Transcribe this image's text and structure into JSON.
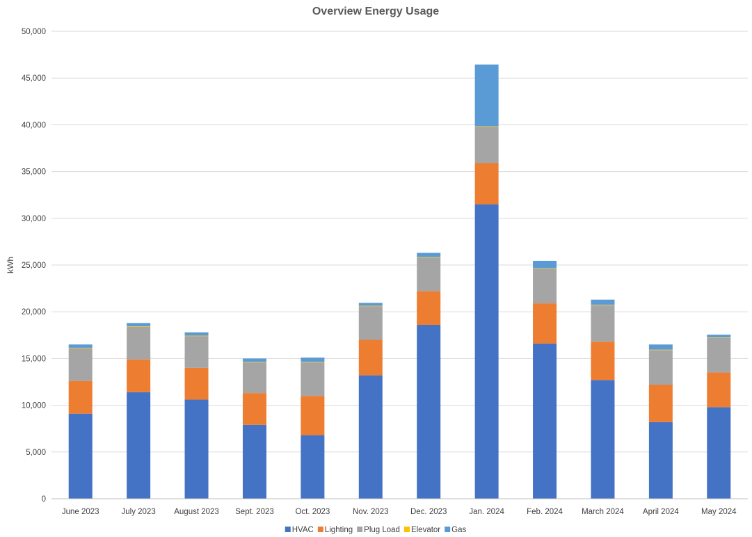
{
  "chart_data": {
    "type": "bar",
    "stacked": true,
    "title": "Overview Energy Usage",
    "xlabel": "",
    "ylabel": "kWh",
    "ylim": [
      0,
      50000
    ],
    "yticks": [
      0,
      5000,
      10000,
      15000,
      20000,
      25000,
      30000,
      35000,
      40000,
      45000,
      50000
    ],
    "ytick_labels": [
      "0",
      "5,000",
      "10,000",
      "15,000",
      "20,000",
      "25,000",
      "30,000",
      "35,000",
      "40,000",
      "45,000",
      "50,000"
    ],
    "grid": true,
    "legend_position": "bottom",
    "categories": [
      "June 2023",
      "July  2023",
      "August 2023",
      "Sept. 2023",
      "Oct. 2023",
      "Nov. 2023",
      "Dec. 2023",
      "Jan. 2024",
      "Feb. 2024",
      "March 2024",
      "April 2024",
      "May 2024"
    ],
    "series": [
      {
        "name": "HVAC",
        "color": "#4472C4",
        "values": [
          9100,
          11400,
          10600,
          7900,
          6800,
          13200,
          18600,
          31500,
          16600,
          12700,
          8200,
          9800
        ]
      },
      {
        "name": "Lighting",
        "color": "#ED7D31",
        "values": [
          3500,
          3500,
          3400,
          3400,
          4200,
          3800,
          3600,
          4400,
          4300,
          4100,
          4000,
          3700
        ]
      },
      {
        "name": "Plug Load",
        "color": "#A5A5A5",
        "values": [
          3500,
          3500,
          3400,
          3300,
          3600,
          3600,
          3600,
          3900,
          3700,
          3900,
          3700,
          3700
        ]
      },
      {
        "name": "Elevator",
        "color": "#FFC000",
        "values": [
          50,
          50,
          50,
          50,
          50,
          50,
          50,
          50,
          50,
          50,
          50,
          50
        ]
      },
      {
        "name": "Gas",
        "color": "#5B9BD5",
        "values": [
          350,
          350,
          350,
          350,
          450,
          300,
          450,
          6600,
          800,
          550,
          550,
          300
        ]
      }
    ]
  }
}
